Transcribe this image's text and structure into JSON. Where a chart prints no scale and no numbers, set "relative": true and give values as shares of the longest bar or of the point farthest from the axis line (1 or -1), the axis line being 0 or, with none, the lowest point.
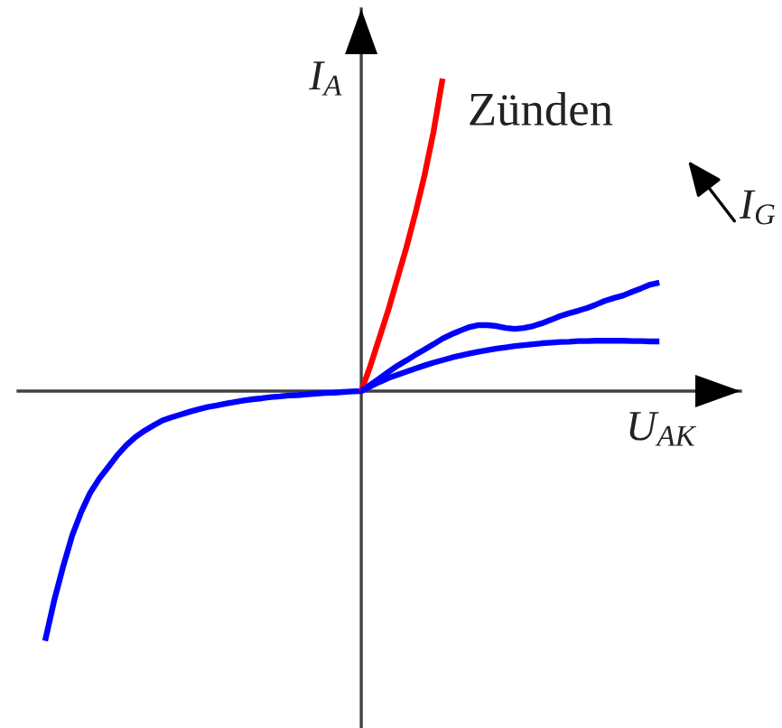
{
  "chart_data": {
    "type": "line",
    "relative": true,
    "xlabel": "U$_{AK}$",
    "ylabel": "I$_{A}$",
    "annotations": [
      "I$_{G}$"
    ],
    "categories": [
      null,
      null,
      null,
      null,
      null,
      null,
      null,
      null,
      null,
      null,
      null,
      null,
      null,
      null,
      null,
      null,
      null,
      null,
      null,
      null,
      null,
      null,
      null,
      null,
      null,
      null,
      null,
      null,
      null,
      null,
      null,
      null,
      null,
      null,
      null,
      null,
      null,
      null,
      null,
      null,
      null,
      null,
      null,
      null,
      null,
      null,
      null,
      null,
      null,
      null,
      null,
      null,
      null,
      null,
      null,
      null,
      null,
      null,
      null,
      null,
      null,
      null,
      null,
      null,
      null,
      null,
      null,
      null,
      null
    ],
    "series": [
      {
        "color": "#0000ff",
        "values": [
          -0.799,
          -0.671,
          -0.561,
          -0.462,
          -0.387,
          -0.325,
          -0.28,
          -0.243,
          -0.205,
          -0.173,
          -0.147,
          -0.127,
          -0.11,
          -0.094,
          -0.084,
          -0.075,
          -0.066,
          -0.058,
          -0.051,
          -0.046,
          -0.04,
          -0.035,
          -0.03,
          -0.026,
          -0.023,
          -0.019,
          -0.017,
          -0.014,
          -0.013,
          -0.01,
          -0.008,
          -0.006,
          -0.005,
          -0.003,
          -0.001,
          0,
          0.015,
          0.029,
          0.042,
          0.052,
          0.062,
          0.072,
          0.082,
          0.091,
          0.099,
          0.107,
          0.114,
          0.12,
          0.126,
          0.131,
          0.136,
          0.14,
          0.144,
          0.147,
          0.15,
          0.153,
          0.155,
          0.157,
          0.158,
          0.16,
          0.16,
          0.161,
          0.161,
          0.161,
          0.161,
          0.16,
          0.16,
          0.159,
          0.159
        ]
      },
      {
        "name": "Zünden",
        "color": "#ff0000",
        "values": [
          null,
          null,
          null,
          null,
          null,
          null,
          null,
          null,
          null,
          null,
          null,
          null,
          null,
          null,
          null,
          null,
          null,
          null,
          null,
          null,
          null,
          null,
          null,
          null,
          null,
          null,
          null,
          null,
          null,
          null,
          null,
          null,
          null,
          null,
          null,
          0,
          0.08,
          0.17,
          0.26,
          0.36,
          0.46,
          0.57,
          0.69,
          0.83,
          1,
          null,
          null,
          null,
          null,
          null,
          null,
          null,
          null,
          null,
          null,
          null,
          null,
          null,
          null,
          null,
          null,
          null,
          null,
          null,
          null,
          null,
          null,
          null,
          null
        ]
      },
      {
        "color": "#0000ff",
        "values": [
          null,
          null,
          null,
          null,
          null,
          null,
          null,
          null,
          null,
          null,
          null,
          null,
          null,
          null,
          null,
          null,
          null,
          null,
          null,
          null,
          null,
          null,
          null,
          null,
          null,
          null,
          null,
          null,
          null,
          null,
          null,
          null,
          null,
          null,
          null,
          0,
          0.02,
          0.04,
          0.061,
          0.081,
          0.098,
          0.116,
          0.133,
          0.15,
          0.168,
          0.182,
          0.194,
          0.205,
          0.211,
          0.211,
          0.208,
          0.202,
          0.199,
          0.202,
          0.208,
          0.217,
          0.228,
          0.24,
          0.249,
          0.257,
          0.266,
          0.277,
          0.289,
          0.298,
          0.306,
          0.318,
          0.329,
          0.341,
          0.347
        ]
      }
    ]
  }
}
